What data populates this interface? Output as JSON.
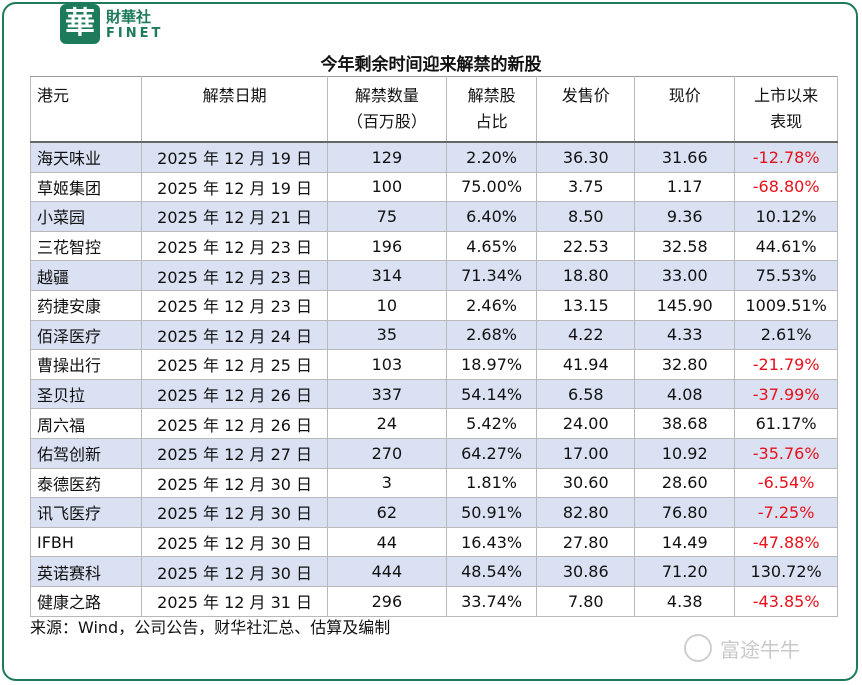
{
  "brand": {
    "logo_char": "華",
    "name_cn": "財華社",
    "name_en": "FINET"
  },
  "title": "今年剩余时间迎来解禁的新股",
  "headers": {
    "name": "港元",
    "date": "解禁日期",
    "qty_line1": "解禁数量",
    "qty_line2": "（百万股）",
    "ratio_line1": "解禁股",
    "ratio_line2": "占比",
    "ipo_price": "发售价",
    "cur_price": "现价",
    "perf_line1": "上市以来",
    "perf_line2": "表现"
  },
  "rows": [
    {
      "name": "海天味业",
      "date": "2025 年 12 月 19 日",
      "qty": "129",
      "ratio": "2.20%",
      "ipo": "36.30",
      "cur": "31.66",
      "perf": "-12.78%",
      "neg": true
    },
    {
      "name": "草姬集团",
      "date": "2025 年 12 月 19 日",
      "qty": "100",
      "ratio": "75.00%",
      "ipo": "3.75",
      "cur": "1.17",
      "perf": "-68.80%",
      "neg": true
    },
    {
      "name": "小菜园",
      "date": "2025 年 12 月 21 日",
      "qty": "75",
      "ratio": "6.40%",
      "ipo": "8.50",
      "cur": "9.36",
      "perf": "10.12%",
      "neg": false
    },
    {
      "name": "三花智控",
      "date": "2025 年 12 月 23 日",
      "qty": "196",
      "ratio": "4.65%",
      "ipo": "22.53",
      "cur": "32.58",
      "perf": "44.61%",
      "neg": false
    },
    {
      "name": "越疆",
      "date": "2025 年 12 月 23 日",
      "qty": "314",
      "ratio": "71.34%",
      "ipo": "18.80",
      "cur": "33.00",
      "perf": "75.53%",
      "neg": false
    },
    {
      "name": "药捷安康",
      "date": "2025 年 12 月 23 日",
      "qty": "10",
      "ratio": "2.46%",
      "ipo": "13.15",
      "cur": "145.90",
      "perf": "1009.51%",
      "neg": false
    },
    {
      "name": "佰泽医疗",
      "date": "2025 年 12 月 24 日",
      "qty": "35",
      "ratio": "2.68%",
      "ipo": "4.22",
      "cur": "4.33",
      "perf": "2.61%",
      "neg": false
    },
    {
      "name": "曹操出行",
      "date": "2025 年 12 月 25 日",
      "qty": "103",
      "ratio": "18.97%",
      "ipo": "41.94",
      "cur": "32.80",
      "perf": "-21.79%",
      "neg": true
    },
    {
      "name": "圣贝拉",
      "date": "2025 年 12 月 26 日",
      "qty": "337",
      "ratio": "54.14%",
      "ipo": "6.58",
      "cur": "4.08",
      "perf": "-37.99%",
      "neg": true
    },
    {
      "name": "周六福",
      "date": "2025 年 12 月 26 日",
      "qty": "24",
      "ratio": "5.42%",
      "ipo": "24.00",
      "cur": "38.68",
      "perf": "61.17%",
      "neg": false
    },
    {
      "name": "佑驾创新",
      "date": "2025 年 12 月 27 日",
      "qty": "270",
      "ratio": "64.27%",
      "ipo": "17.00",
      "cur": "10.92",
      "perf": "-35.76%",
      "neg": true
    },
    {
      "name": "泰德医药",
      "date": "2025 年 12 月 30 日",
      "qty": "3",
      "ratio": "1.81%",
      "ipo": "30.60",
      "cur": "28.60",
      "perf": "-6.54%",
      "neg": true
    },
    {
      "name": "讯飞医疗",
      "date": "2025 年 12 月 30 日",
      "qty": "62",
      "ratio": "50.91%",
      "ipo": "82.80",
      "cur": "76.80",
      "perf": "-7.25%",
      "neg": true
    },
    {
      "name": "IFBH",
      "date": "2025 年 12 月 30 日",
      "qty": "44",
      "ratio": "16.43%",
      "ipo": "27.80",
      "cur": "14.49",
      "perf": "-47.88%",
      "neg": true
    },
    {
      "name": "英诺赛科",
      "date": "2025 年 12 月 30 日",
      "qty": "444",
      "ratio": "48.54%",
      "ipo": "30.86",
      "cur": "71.20",
      "perf": "130.72%",
      "neg": false
    },
    {
      "name": "健康之路",
      "date": "2025 年 12 月 31 日",
      "qty": "296",
      "ratio": "33.74%",
      "ipo": "7.80",
      "cur": "4.38",
      "perf": "-43.85%",
      "neg": true
    }
  ],
  "source": "来源：Wind，公司公告，财华社汇总、估算及编制",
  "watermark_brand": "富途牛牛",
  "colors": {
    "brand_green": "#1d7a5b",
    "negative_red": "#e8101a",
    "row_stripe": "#d9e1f2"
  }
}
